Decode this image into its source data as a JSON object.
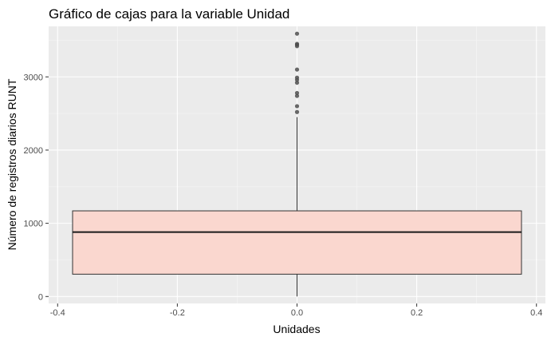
{
  "chart_data": {
    "type": "boxplot",
    "title": "Gráfico de cajas para la variable Unidad",
    "xlabel": "Unidades",
    "ylabel": "Número de registros diarios RUNT",
    "xlim": [
      -0.415,
      0.415
    ],
    "ylim": [
      -95,
      3690
    ],
    "x_ticks": [
      {
        "value": -0.4,
        "label": "-0.4"
      },
      {
        "value": -0.2,
        "label": "-0.2"
      },
      {
        "value": 0.0,
        "label": "0.0"
      },
      {
        "value": 0.2,
        "label": "0.2"
      },
      {
        "value": 0.4,
        "label": "0.4"
      }
    ],
    "y_ticks": [
      {
        "value": 0,
        "label": "0"
      },
      {
        "value": 1000,
        "label": "1000"
      },
      {
        "value": 2000,
        "label": "2000"
      },
      {
        "value": 3000,
        "label": "3000"
      }
    ],
    "grid": true,
    "box": {
      "x_center": 0.0,
      "x_min": -0.375,
      "x_max": 0.375,
      "whisker_low": 0,
      "q1": 305,
      "median": 880,
      "q3": 1170,
      "whisker_high": 2450,
      "outliers": [
        2520,
        2600,
        2740,
        2780,
        2920,
        2960,
        2990,
        3100,
        3420,
        3440,
        3450,
        3590
      ]
    },
    "colors": {
      "panel_background": "#ebebeb",
      "grid_major": "#ffffff",
      "grid_minor": "#f5f5f5",
      "box_fill": "#fad7cf",
      "box_line": "#333333",
      "median_line": "#1a1a1a",
      "outlier": "#4d4d4d"
    }
  }
}
